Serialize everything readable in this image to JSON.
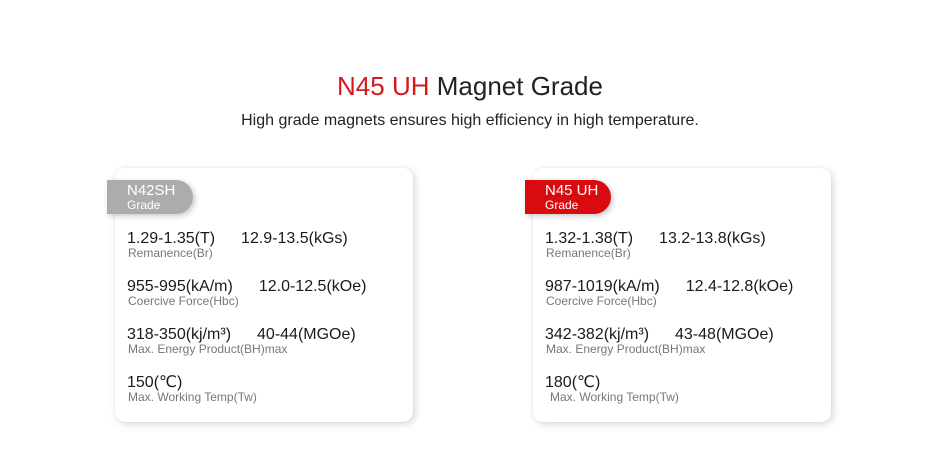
{
  "header": {
    "title_accent": "N45 UH",
    "title_rest": "Magnet Grade",
    "subtitle": "High grade magnets ensures high efficiency in high temperature."
  },
  "colors": {
    "accent_red": "#d90b0f",
    "grey_badge": "#acacac"
  },
  "cards": [
    {
      "badge_name": "N42SH",
      "badge_sub": "Grade",
      "rows": [
        {
          "v1": "1.29-1.35(T)",
          "v2": "12.9-13.5(kGs)",
          "label": "Remanence(Br)"
        },
        {
          "v1": "955-995(kA/m)",
          "v2": "12.0-12.5(kOe)",
          "label": "Coercive Force(Hbc)"
        },
        {
          "v1": "318-350(kj/m³)",
          "v2": "40-44(MGOe)",
          "label": "Max. Energy Product(BH)max"
        },
        {
          "v1": "150(℃)",
          "v2": "",
          "label": "Max. Working Temp(Tw)"
        }
      ]
    },
    {
      "badge_name": "N45 UH",
      "badge_sub": "Grade",
      "rows": [
        {
          "v1": "1.32-1.38(T)",
          "v2": "13.2-13.8(kGs)",
          "label": "Remanence(Br)"
        },
        {
          "v1": "987-1019(kA/m)",
          "v2": "12.4-12.8(kOe)",
          "label": "Coercive Force(Hbc)"
        },
        {
          "v1": "342-382(kj/m³)",
          "v2": "43-48(MGOe)",
          "label": "Max. Energy Product(BH)max"
        },
        {
          "v1": "180(℃)",
          "v2": "",
          "label": "Max. Working Temp(Tw)"
        }
      ]
    }
  ]
}
